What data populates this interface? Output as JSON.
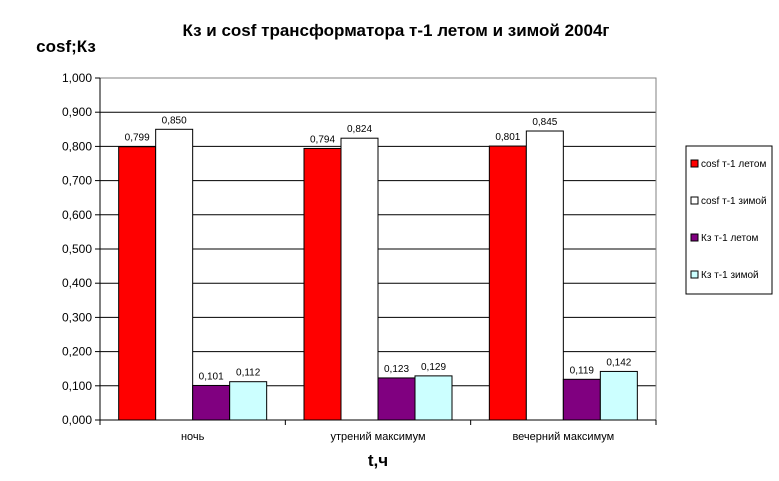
{
  "chart_data": {
    "type": "bar",
    "title": "Кз и cosf трансформатора т-1 летом и зимой 2004г",
    "xlabel": "t,ч",
    "ylabel": "cosf;Кз",
    "categories": [
      "ночь",
      "утрений максимум",
      "вечерний максимум"
    ],
    "ylim": [
      0,
      1
    ],
    "ytick_step": 0.1,
    "ytick_labels": [
      "0,000",
      "0,100",
      "0,200",
      "0,300",
      "0,400",
      "0,500",
      "0,600",
      "0,700",
      "0,800",
      "0,900",
      "1,000"
    ],
    "grid": "horizontal",
    "legend_position": "right",
    "series": [
      {
        "name": "cosf т-1 летом",
        "color": "#ff0000",
        "values": [
          0.799,
          0.794,
          0.801
        ],
        "labels": [
          "0,799",
          "0,794",
          "0,801"
        ]
      },
      {
        "name": "cosf т-1 зимой",
        "color": "#ffffff",
        "values": [
          0.85,
          0.824,
          0.845
        ],
        "labels": [
          "0,850",
          "0,824",
          "0,845"
        ]
      },
      {
        "name": "Кз т-1 летом",
        "color": "#800080",
        "values": [
          0.101,
          0.123,
          0.119
        ],
        "labels": [
          "0,101",
          "0,123",
          "0,119"
        ]
      },
      {
        "name": "Кз т-1 зимой",
        "color": "#ccffff",
        "values": [
          0.112,
          0.129,
          0.142
        ],
        "labels": [
          "0,112",
          "0,129",
          "0,142"
        ]
      }
    ]
  }
}
